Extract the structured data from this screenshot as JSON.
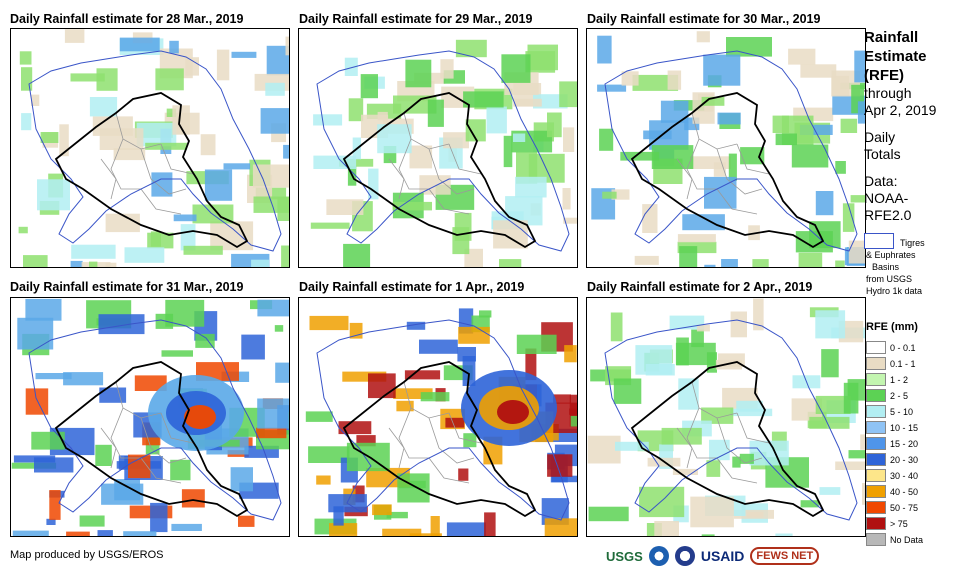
{
  "panels": [
    {
      "title": "Daily Rainfall estimate for 28 Mar., 2019",
      "accent_fills": [
        "#e9dcc4",
        "#8ee06e",
        "#b2eef2",
        "#5aa8e8"
      ]
    },
    {
      "title": "Daily Rainfall estimate for 29 Mar., 2019",
      "accent_fills": [
        "#e9dcc4",
        "#8ee06e",
        "#b2eef2",
        "#5cd254"
      ]
    },
    {
      "title": "Daily Rainfall estimate for 30 Mar., 2019",
      "accent_fills": [
        "#e9dcc4",
        "#8ee06e",
        "#5cd254",
        "#5aa8e8"
      ]
    },
    {
      "title": "Daily Rainfall estimate for 31 Mar., 2019",
      "accent_fills": [
        "#5cd254",
        "#5aa8e8",
        "#2e64d8",
        "#f04800"
      ]
    },
    {
      "title": "Daily Rainfall estimate for 1 Apr., 2019",
      "accent_fills": [
        "#5cd254",
        "#2e64d8",
        "#f0a000",
        "#b01010"
      ]
    },
    {
      "title": "Daily Rainfall estimate for 2 Apr., 2019",
      "accent_fills": [
        "#e9dcc4",
        "#8ee06e",
        "#b2eef2",
        "#5cd254"
      ]
    }
  ],
  "side_title": [
    "Rainfall",
    "Estimate",
    "(RFE)"
  ],
  "side_sub": [
    "through",
    "Apr 2, 2019"
  ],
  "daily_totals": [
    "Daily",
    "Totals"
  ],
  "data_source": [
    "Data:",
    "NOAA-",
    "RFE2.0"
  ],
  "basin_legend": [
    "Tigres",
    "& Euphrates",
    "Basins",
    "from USGS",
    "Hydro 1k data"
  ],
  "legend_title": "RFE (mm)",
  "legend": [
    {
      "label": "0 - 0.1",
      "color": "#ffffff"
    },
    {
      "label": "0.1 - 1",
      "color": "#e9dcc4"
    },
    {
      "label": "1 - 2",
      "color": "#c3f5b0"
    },
    {
      "label": "2 - 5",
      "color": "#5cd254"
    },
    {
      "label": "5 - 10",
      "color": "#b2eef2"
    },
    {
      "label": "10 - 15",
      "color": "#8fc3f5"
    },
    {
      "label": "15 - 20",
      "color": "#4f95ea"
    },
    {
      "label": "20 - 30",
      "color": "#2e64d8"
    },
    {
      "label": "30 - 40",
      "color": "#fde68a"
    },
    {
      "label": "40 - 50",
      "color": "#f0a000"
    },
    {
      "label": "50 - 75",
      "color": "#f04800"
    },
    {
      "label": "> 75",
      "color": "#b01010"
    },
    {
      "label": "No Data",
      "color": "#b8b8b8"
    }
  ],
  "credit": "Map produced by USGS/EROS",
  "logos": {
    "usgs": "USGS",
    "usaid": "USAID",
    "fews": "FEWS NET"
  },
  "colors": {
    "border_country": "#000000",
    "border_admin": "#9a9a9a",
    "basin_outline": "#3a55c8"
  }
}
